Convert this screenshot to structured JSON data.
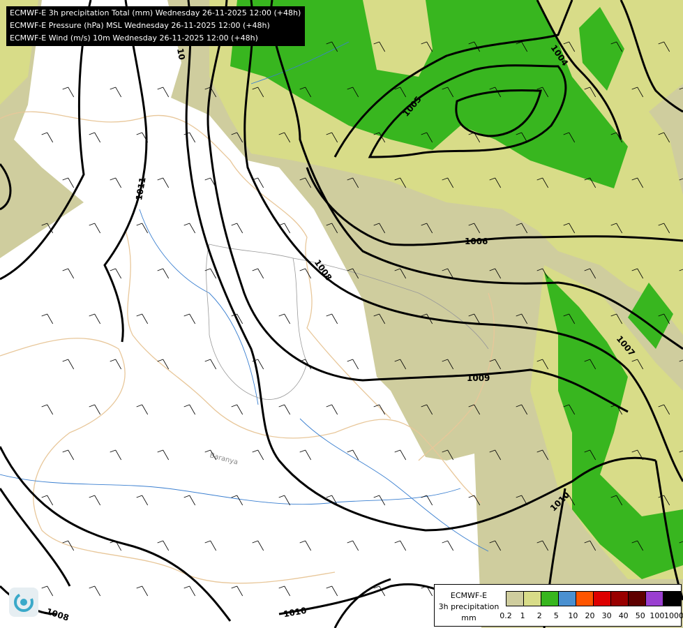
{
  "header": {
    "lines": [
      "ECMWF-E 3h precipitation Total (mm) Wednesday 26-11-2025 12:00 (+48h)",
      "ECMWF-E Pressure (hPa) MSL Wednesday 26-11-2025 12:00 (+48h)",
      "ECMWF-E Wind (m/s) 10m Wednesday 26-11-2025 12:00 (+48h)"
    ]
  },
  "map": {
    "region_label": "Baranya",
    "isobar_labels": [
      "1004",
      "1005",
      "1006",
      "1007",
      "1008",
      "1008",
      "1009",
      "1010",
      "1010",
      "1011",
      "10"
    ],
    "precip_colors": {
      "0.2": "#cfcd9e",
      "1": "#d8dc88",
      "2": "#38b61f"
    }
  },
  "legend": {
    "title_lines": [
      "ECMWF-E",
      "3h precipitation",
      "mm"
    ],
    "ticks": [
      "0.2",
      "1",
      "2",
      "5",
      "10",
      "20",
      "30",
      "40",
      "50",
      "100",
      "1000"
    ],
    "colors": [
      "#cfcd9e",
      "#d8dc88",
      "#38b61f",
      "#4a90d0",
      "#ff5500",
      "#dd0000",
      "#990000",
      "#5e0000",
      "#9a3fd0",
      "#000000"
    ]
  },
  "logo": "logo-icon"
}
